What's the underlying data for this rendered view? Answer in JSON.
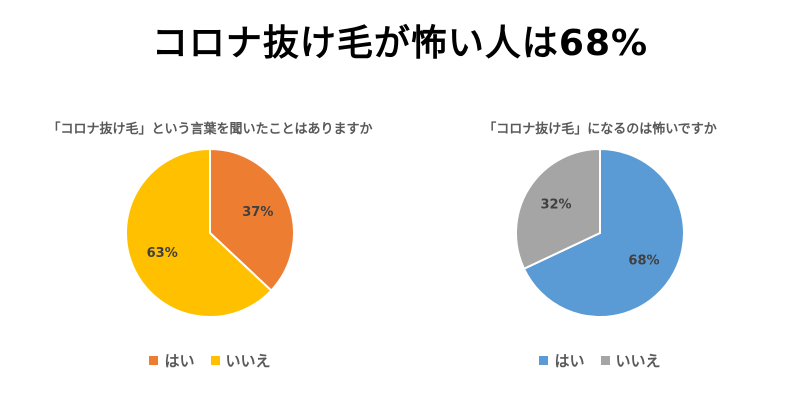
{
  "title": "コロナ抜け毛が怖い人は68%",
  "chart_data": [
    {
      "type": "pie",
      "title": "「コロナ抜け毛」という言葉を聞いたことはありますか",
      "categories": [
        "はい",
        "いいえ"
      ],
      "values": [
        37,
        63
      ],
      "labels": [
        "37%",
        "63%"
      ],
      "colors": [
        "#ED7D31",
        "#FFC000"
      ],
      "start_angle_deg": 0,
      "legend_position": "bottom"
    },
    {
      "type": "pie",
      "title": "「コロナ抜け毛」になるのは怖いですか",
      "categories": [
        "はい",
        "いいえ"
      ],
      "values": [
        68,
        32
      ],
      "labels": [
        "68%",
        "32%"
      ],
      "colors": [
        "#5B9BD5",
        "#A5A5A5"
      ],
      "start_angle_deg": 0,
      "legend_position": "bottom"
    }
  ]
}
